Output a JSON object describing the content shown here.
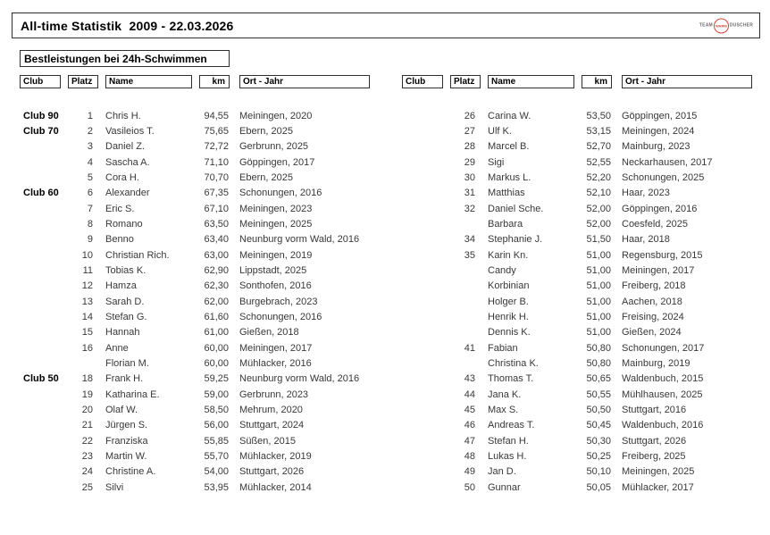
{
  "title": "All-time Statistik  2009 - 22.03.2026",
  "subtitle": "Bestleistungen bei 24h-Schwimmen",
  "logo": {
    "team": "TEAM",
    "warm": "WARM",
    "duscher": "DUSCHER",
    "accent_color": "#d9423a"
  },
  "columns": {
    "club": "Club",
    "platz": "Platz",
    "name": "Name",
    "km": "km",
    "ort": "Ort - Jahr"
  },
  "left_rows": [
    {
      "club": "Club 90",
      "platz": "1",
      "name": "Chris H.",
      "km": "94,55",
      "ort": "Meiningen, 2020"
    },
    {
      "club": "Club 70",
      "platz": "2",
      "name": "Vasileios T.",
      "km": "75,65",
      "ort": "Ebern, 2025"
    },
    {
      "club": "",
      "platz": "3",
      "name": "Daniel Z.",
      "km": "72,72",
      "ort": "Gerbrunn, 2025"
    },
    {
      "club": "",
      "platz": "4",
      "name": "Sascha A.",
      "km": "71,10",
      "ort": "Göppingen, 2017"
    },
    {
      "club": "",
      "platz": "5",
      "name": "Cora H.",
      "km": "70,70",
      "ort": "Ebern, 2025"
    },
    {
      "club": "Club 60",
      "platz": "6",
      "name": "Alexander",
      "km": "67,35",
      "ort": "Schonungen, 2016"
    },
    {
      "club": "",
      "platz": "7",
      "name": "Eric S.",
      "km": "67,10",
      "ort": "Meiningen, 2023"
    },
    {
      "club": "",
      "platz": "8",
      "name": "Romano",
      "km": "63,50",
      "ort": "Meiningen, 2025"
    },
    {
      "club": "",
      "platz": "9",
      "name": "Benno",
      "km": "63,40",
      "ort": "Neunburg vorm Wald, 2016"
    },
    {
      "club": "",
      "platz": "10",
      "name": "Christian Rich.",
      "km": "63,00",
      "ort": "Meiningen, 2019"
    },
    {
      "club": "",
      "platz": "11",
      "name": "Tobias K.",
      "km": "62,90",
      "ort": "Lippstadt, 2025"
    },
    {
      "club": "",
      "platz": "12",
      "name": "Hamza",
      "km": "62,30",
      "ort": "Sonthofen, 2016"
    },
    {
      "club": "",
      "platz": "13",
      "name": "Sarah D.",
      "km": "62,00",
      "ort": "Burgebrach, 2023"
    },
    {
      "club": "",
      "platz": "14",
      "name": "Stefan G.",
      "km": "61,60",
      "ort": "Schonungen, 2016"
    },
    {
      "club": "",
      "platz": "15",
      "name": "Hannah",
      "km": "61,00",
      "ort": "Gießen, 2018"
    },
    {
      "club": "",
      "platz": "16",
      "name": "Anne",
      "km": "60,00",
      "ort": "Meiningen, 2017"
    },
    {
      "club": "",
      "platz": "",
      "name": "Florian M.",
      "km": "60,00",
      "ort": "Mühlacker, 2016"
    },
    {
      "club": "Club 50",
      "platz": "18",
      "name": "Frank H.",
      "km": "59,25",
      "ort": "Neunburg vorm Wald, 2016"
    },
    {
      "club": "",
      "platz": "19",
      "name": "Katharina E.",
      "km": "59,00",
      "ort": "Gerbrunn, 2023"
    },
    {
      "club": "",
      "platz": "20",
      "name": "Olaf W.",
      "km": "58,50",
      "ort": "Mehrum, 2020"
    },
    {
      "club": "",
      "platz": "21",
      "name": "Jürgen S.",
      "km": "56,00",
      "ort": "Stuttgart, 2024"
    },
    {
      "club": "",
      "platz": "22",
      "name": "Franziska",
      "km": "55,85",
      "ort": "Süßen, 2015"
    },
    {
      "club": "",
      "platz": "23",
      "name": "Martin W.",
      "km": "55,70",
      "ort": "Mühlacker, 2019"
    },
    {
      "club": "",
      "platz": "24",
      "name": "Christine A.",
      "km": "54,00",
      "ort": "Stuttgart, 2026"
    },
    {
      "club": "",
      "platz": "25",
      "name": "Silvi",
      "km": "53,95",
      "ort": "Mühlacker, 2014"
    }
  ],
  "right_rows": [
    {
      "club": "",
      "platz": "26",
      "name": "Carina W.",
      "km": "53,50",
      "ort": "Göppingen, 2015"
    },
    {
      "club": "",
      "platz": "27",
      "name": "Ulf K.",
      "km": "53,15",
      "ort": "Meiningen, 2024"
    },
    {
      "club": "",
      "platz": "28",
      "name": "Marcel B.",
      "km": "52,70",
      "ort": "Mainburg, 2023"
    },
    {
      "club": "",
      "platz": "29",
      "name": "Sigi",
      "km": "52,55",
      "ort": "Neckarhausen, 2017"
    },
    {
      "club": "",
      "platz": "30",
      "name": "Markus L.",
      "km": "52,20",
      "ort": "Schonungen, 2025"
    },
    {
      "club": "",
      "platz": "31",
      "name": "Matthias",
      "km": "52,10",
      "ort": "Haar, 2023"
    },
    {
      "club": "",
      "platz": "32",
      "name": "Daniel Sche.",
      "km": "52,00",
      "ort": "Göppingen, 2016"
    },
    {
      "club": "",
      "platz": "",
      "name": "Barbara",
      "km": "52,00",
      "ort": "Coesfeld, 2025"
    },
    {
      "club": "",
      "platz": "34",
      "name": "Stephanie J.",
      "km": "51,50",
      "ort": "Haar, 2018"
    },
    {
      "club": "",
      "platz": "35",
      "name": "Karin Kn.",
      "km": "51,00",
      "ort": "Regensburg, 2015"
    },
    {
      "club": "",
      "platz": "",
      "name": "Candy",
      "km": "51,00",
      "ort": "Meiningen, 2017"
    },
    {
      "club": "",
      "platz": "",
      "name": "Korbinian",
      "km": "51,00",
      "ort": "Freiberg, 2018"
    },
    {
      "club": "",
      "platz": "",
      "name": "Holger B.",
      "km": "51,00",
      "ort": "Aachen, 2018"
    },
    {
      "club": "",
      "platz": "",
      "name": "Henrik H.",
      "km": "51,00",
      "ort": "Freising, 2024"
    },
    {
      "club": "",
      "platz": "",
      "name": "Dennis K.",
      "km": "51,00",
      "ort": "Gießen, 2024"
    },
    {
      "club": "",
      "platz": "41",
      "name": "Fabian",
      "km": "50,80",
      "ort": "Schonungen, 2017"
    },
    {
      "club": "",
      "platz": "",
      "name": "Christina K.",
      "km": "50,80",
      "ort": "Mainburg, 2019"
    },
    {
      "club": "",
      "platz": "43",
      "name": "Thomas T.",
      "km": "50,65",
      "ort": "Waldenbuch, 2015"
    },
    {
      "club": "",
      "platz": "44",
      "name": "Jana K.",
      "km": "50,55",
      "ort": "Mühlhausen, 2025"
    },
    {
      "club": "",
      "platz": "45",
      "name": "Max S.",
      "km": "50,50",
      "ort": "Stuttgart, 2016"
    },
    {
      "club": "",
      "platz": "46",
      "name": "Andreas T.",
      "km": "50,45",
      "ort": "Waldenbuch, 2016"
    },
    {
      "club": "",
      "platz": "47",
      "name": "Stefan H.",
      "km": "50,30",
      "ort": "Stuttgart, 2026"
    },
    {
      "club": "",
      "platz": "48",
      "name": "Lukas H.",
      "km": "50,25",
      "ort": "Freiberg, 2025"
    },
    {
      "club": "",
      "platz": "49",
      "name": "Jan D.",
      "km": "50,10",
      "ort": "Meiningen, 2025"
    },
    {
      "club": "",
      "platz": "50",
      "name": "Gunnar",
      "km": "50,05",
      "ort": "Mühlacker, 2017"
    }
  ]
}
